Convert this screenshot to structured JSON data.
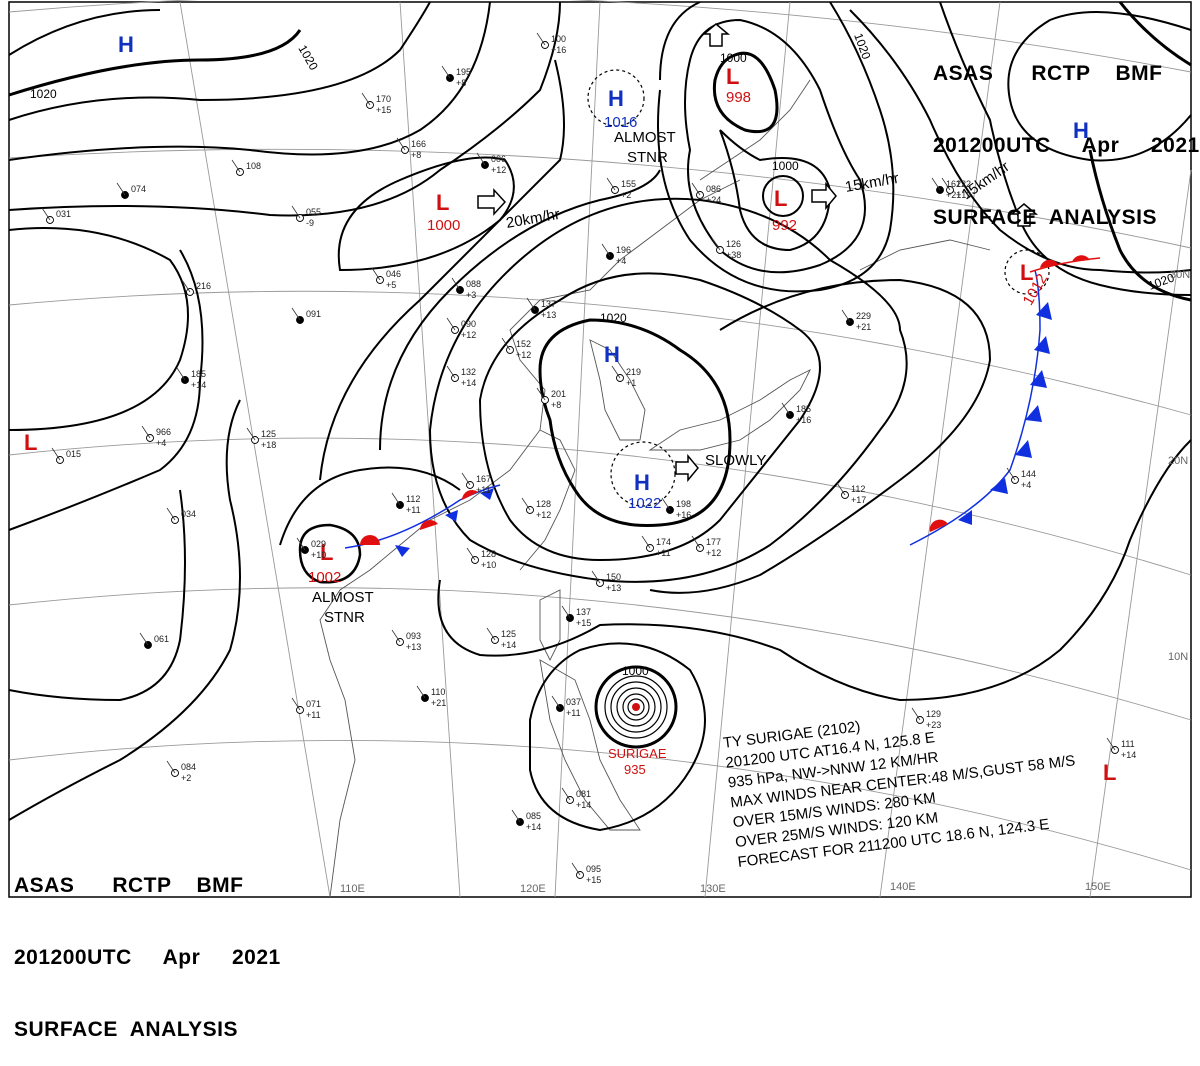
{
  "header": {
    "line1": "ASAS      RCTP    BMF",
    "line2": "201200UTC     Apr     2021",
    "line3": "SURFACE  ANALYSIS"
  },
  "isobar_labels": [
    "1020",
    "1020",
    "1020",
    "1020",
    "1020",
    "1000",
    "1000",
    "1000"
  ],
  "systems": {
    "high": {
      "symbol": "H",
      "color": "#1030c0"
    },
    "low": {
      "symbol": "L",
      "color": "#d01010"
    },
    "high_pressures": [
      "1016",
      "1022"
    ],
    "low_pressures": [
      "1000",
      "998",
      "992",
      "1002",
      "1012"
    ]
  },
  "motions": {
    "m1": "20km/hr",
    "m2": "15km/hr",
    "m3": "15km/hr",
    "m4": "SLOWLY",
    "almost_stnr": "ALMOST\nSTNR"
  },
  "typhoon": {
    "name": "SURIGAE",
    "pressure": "935",
    "bulletin": [
      "TY  SURIGAE  (2102)",
      "201200  UTC   AT16.4  N,  125.8  E",
      "935  hPa,  NW->NNW   12  KM/HR",
      "MAX WINDS NEAR CENTER:48 M/S,GUST 58 M/S",
      "OVER 15M/S WINDS: 280  KM",
      "OVER 25M/S WINDS: 120  KM",
      "FORECAST FOR 211200 UTC  18.6 N,  124.3  E"
    ]
  },
  "gridlabels": {
    "lon": [
      "110E",
      "120E",
      "130E",
      "140E",
      "150E"
    ],
    "lat": [
      "30N",
      "20N",
      "10N"
    ]
  },
  "stations": [
    {
      "t": "195",
      "d": "+8"
    },
    {
      "t": "170",
      "d": "+15"
    },
    {
      "t": "166",
      "d": "+8"
    },
    {
      "t": "006",
      "d": "+12"
    },
    {
      "t": "055",
      "d": "-9"
    },
    {
      "t": "046",
      "d": "+5"
    },
    {
      "t": "088",
      "d": "+3"
    },
    {
      "t": "090",
      "d": "+12"
    },
    {
      "t": "132",
      "d": "+14"
    },
    {
      "t": "185",
      "d": "+14"
    },
    {
      "t": "125",
      "d": "+18"
    },
    {
      "t": "966",
      "d": "+4"
    },
    {
      "t": "112",
      "d": "+11"
    },
    {
      "t": "167",
      "d": "+11"
    },
    {
      "t": "128",
      "d": "+12"
    },
    {
      "t": "029",
      "d": "+10"
    },
    {
      "t": "128",
      "d": "+10"
    },
    {
      "t": "150",
      "d": "+13"
    },
    {
      "t": "137",
      "d": "+15"
    },
    {
      "t": "125",
      "d": "+14"
    },
    {
      "t": "093",
      "d": "+13"
    },
    {
      "t": "110",
      "d": "+21"
    },
    {
      "t": "071",
      "d": "+11"
    },
    {
      "t": "084",
      "d": "+2"
    },
    {
      "t": "196",
      "d": "+4"
    },
    {
      "t": "155",
      "d": "+2"
    },
    {
      "t": "219",
      "d": "+1"
    },
    {
      "t": "198",
      "d": "+16"
    },
    {
      "t": "174",
      "d": "+11"
    },
    {
      "t": "177",
      "d": "+12"
    },
    {
      "t": "185",
      "d": "+16"
    },
    {
      "t": "112",
      "d": "+17"
    },
    {
      "t": "144",
      "d": "+4"
    },
    {
      "t": "229",
      "d": "+21"
    },
    {
      "t": "126",
      "d": "+38"
    },
    {
      "t": "086",
      "d": "+24"
    },
    {
      "t": "161",
      "d": "+21"
    },
    {
      "t": "129",
      "d": "+23"
    },
    {
      "t": "111",
      "d": "+14"
    },
    {
      "t": "061",
      "d": ""
    },
    {
      "t": "034",
      "d": ""
    },
    {
      "t": "015",
      "d": ""
    },
    {
      "t": "074",
      "d": ""
    },
    {
      "t": "031",
      "d": ""
    },
    {
      "t": "216",
      "d": ""
    },
    {
      "t": "091",
      "d": ""
    },
    {
      "t": "108",
      "d": ""
    },
    {
      "t": "100",
      "d": "+16"
    },
    {
      "t": "137",
      "d": "+13"
    },
    {
      "t": "152",
      "d": "+12"
    },
    {
      "t": "201",
      "d": "+8"
    },
    {
      "t": "037",
      "d": "+11"
    },
    {
      "t": "095",
      "d": "+15"
    },
    {
      "t": "081",
      "d": "+14"
    },
    {
      "t": "085",
      "d": "+14"
    },
    {
      "t": "222",
      "d": "+19"
    }
  ]
}
